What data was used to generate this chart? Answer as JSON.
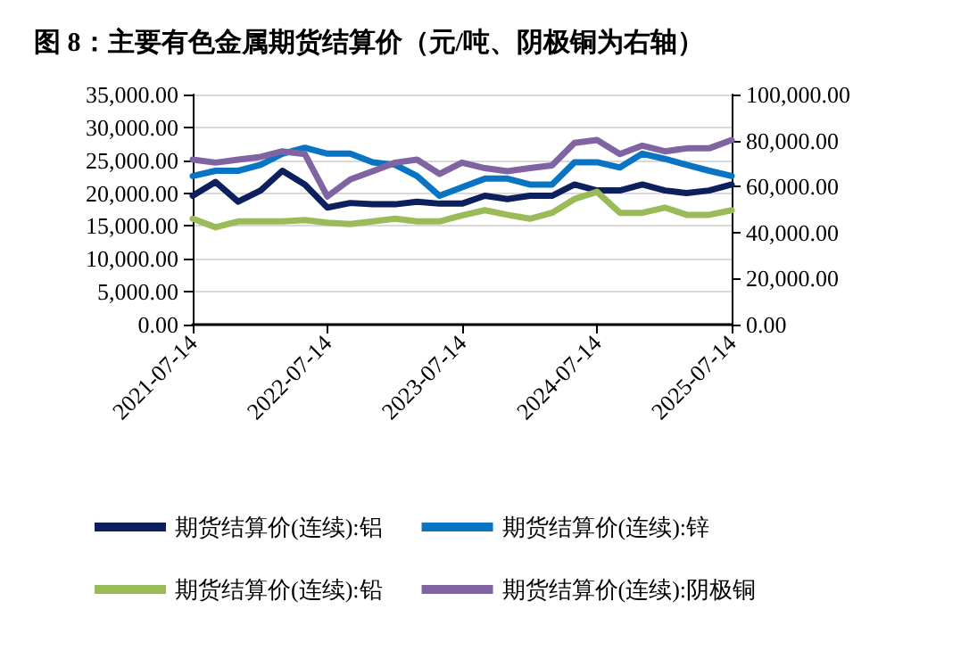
{
  "chart_data": {
    "type": "line",
    "title": "图 8：主要有色金属期货结算价（元/吨、阴极铜为右轴）",
    "x": [
      "2021-07-14",
      "2021-09-14",
      "2021-11-14",
      "2022-01-14",
      "2022-03-14",
      "2022-05-14",
      "2022-07-14",
      "2022-09-14",
      "2022-11-14",
      "2023-01-14",
      "2023-03-14",
      "2023-05-14",
      "2023-07-14",
      "2023-09-14",
      "2023-11-14",
      "2024-01-14",
      "2024-03-14",
      "2024-05-14",
      "2024-07-14",
      "2024-09-14",
      "2024-11-14",
      "2025-01-14",
      "2025-03-14",
      "2025-05-14",
      "2025-07-14"
    ],
    "series": [
      {
        "name": "期货结算价(连续):铝",
        "color": "#0d1f5c",
        "values": [
          19600,
          21700,
          18700,
          20400,
          23400,
          21300,
          17800,
          18500,
          18300,
          18300,
          18700,
          18400,
          18400,
          19600,
          19100,
          19600,
          19600,
          21300,
          20400,
          20400,
          21300,
          20400,
          20000,
          20400,
          21300
        ]
      },
      {
        "name": "期货结算价(连续):锌",
        "color": "#0a74c4",
        "values": [
          22600,
          23400,
          23400,
          24300,
          26000,
          26900,
          26000,
          26000,
          24700,
          24300,
          22600,
          19600,
          20900,
          22200,
          22200,
          21300,
          21300,
          24700,
          24700,
          23900,
          26000,
          25200,
          24300,
          23400,
          22600
        ]
      },
      {
        "name": "期货结算价(连续):铅",
        "color": "#9bbb59",
        "values": [
          16100,
          14800,
          15700,
          15700,
          15700,
          15900,
          15500,
          15300,
          15700,
          16100,
          15700,
          15700,
          16600,
          17400,
          16700,
          16100,
          17000,
          19100,
          20200,
          17000,
          17000,
          17800,
          16700,
          16700,
          17400
        ]
      },
      {
        "name": "期货结算价(连续):阴极铜",
        "color": "#8064a2",
        "axis": "y2",
        "values": [
          71700,
          70400,
          71700,
          72900,
          75300,
          74100,
          55700,
          63100,
          66700,
          70400,
          71700,
          65500,
          70400,
          68000,
          66700,
          68000,
          69200,
          79000,
          80200,
          74100,
          77800,
          75300,
          76600,
          76600,
          80200
        ]
      }
    ],
    "xlim": [
      "2021-07-14",
      "2025-07-14"
    ],
    "xticks": [
      "2021-07-14",
      "2022-07-14",
      "2023-07-14",
      "2024-07-14",
      "2025-07-14"
    ],
    "ylim": [
      0,
      35000
    ],
    "yticks": [
      {
        "value": 0,
        "label": "0.00"
      },
      {
        "value": 5000,
        "label": "5,000.00"
      },
      {
        "value": 10000,
        "label": "10,000.00"
      },
      {
        "value": 15000,
        "label": "15,000.00"
      },
      {
        "value": 20000,
        "label": "20,000.00"
      },
      {
        "value": 25000,
        "label": "25,000.00"
      },
      {
        "value": 30000,
        "label": "30,000.00"
      },
      {
        "value": 35000,
        "label": "35,000.00"
      }
    ],
    "y2lim": [
      0,
      100000
    ],
    "y2ticks": [
      {
        "value": 0,
        "label": "0.00"
      },
      {
        "value": 20000,
        "label": "20,000.00"
      },
      {
        "value": 40000,
        "label": "40,000.00"
      },
      {
        "value": 60000,
        "label": "60,000.00"
      },
      {
        "value": 80000,
        "label": "80,000.00"
      },
      {
        "value": 100000,
        "label": "100,000.00"
      }
    ],
    "grid": "y",
    "legend": "bottom",
    "marker": "none",
    "line_style": "solid"
  }
}
